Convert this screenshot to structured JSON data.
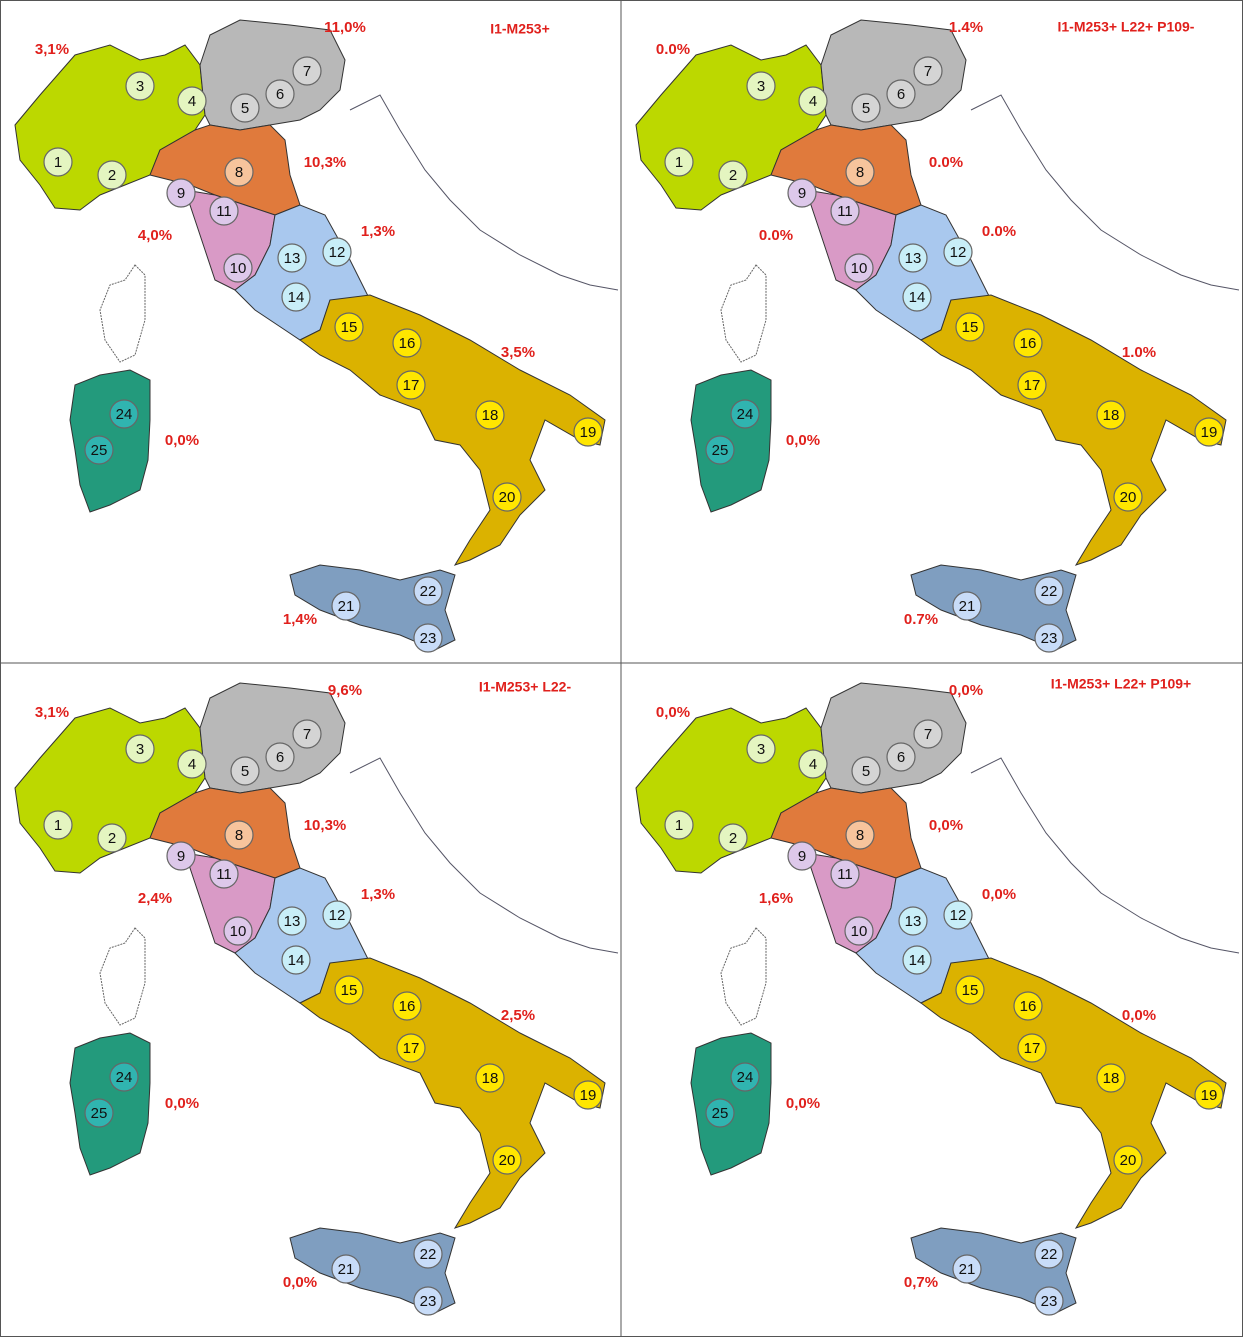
{
  "markers": [
    "1",
    "2",
    "3",
    "4",
    "5",
    "6",
    "7",
    "8",
    "9",
    "10",
    "11",
    "12",
    "13",
    "14",
    "15",
    "16",
    "17",
    "18",
    "19",
    "20",
    "21",
    "22",
    "23",
    "24",
    "25"
  ],
  "panels": [
    {
      "title": "I1-M253+",
      "labels": [
        "3,1%",
        "11,0%",
        "10,3%",
        "4,0%",
        "1,3%",
        "3,5%",
        "0,0%",
        "1,4%"
      ]
    },
    {
      "title": "I1-M253+ L22+ P109-",
      "labels": [
        "0.0%",
        "1.4%",
        "0.0%",
        "0.0%",
        "0.0%",
        "1.0%",
        "0,0%",
        "0.7%"
      ]
    },
    {
      "title": "I1-M253+ L22-",
      "labels": [
        "3,1%",
        "9,6%",
        "10,3%",
        "2,4%",
        "1,3%",
        "2,5%",
        "0,0%",
        "0,0%"
      ]
    },
    {
      "title": "I1-M253+ L22+ P109+",
      "labels": [
        "0,0%",
        "0,0%",
        "0,0%",
        "1,6%",
        "0,0%",
        "0,0%",
        "0,0%",
        "0,7%"
      ]
    }
  ]
}
